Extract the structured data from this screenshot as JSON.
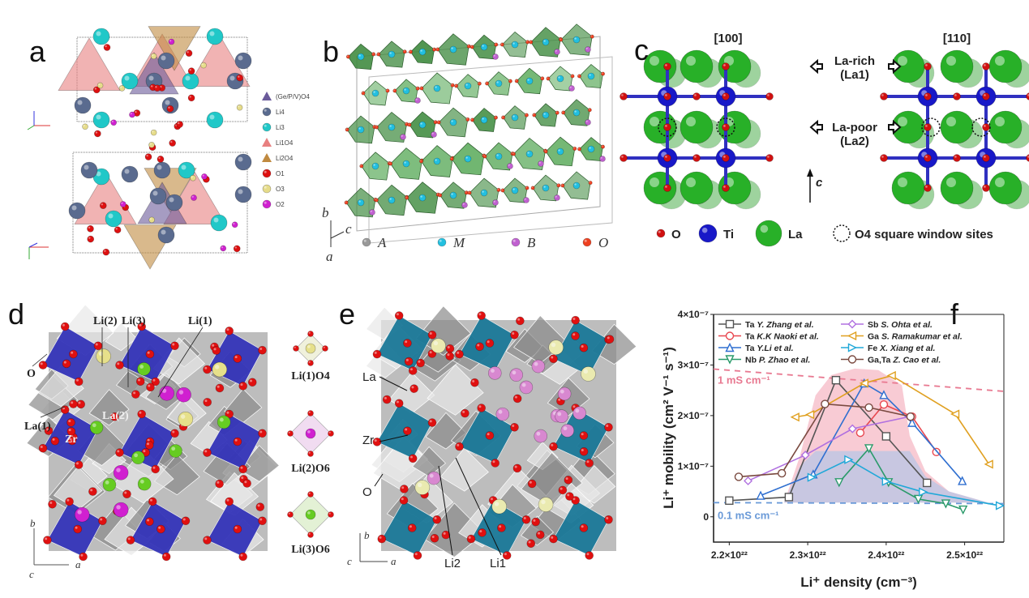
{
  "panels": {
    "a": {
      "label": "a",
      "legend": [
        "(Ge/P/V)O4",
        "Li4",
        "Li3",
        "Li1O4",
        "Li2O4",
        "O1",
        "O3",
        "O2"
      ],
      "legend_colors": [
        "#6a5a9a",
        "#5a6b8f",
        "#20c8c8",
        "#e88080",
        "#c08a40",
        "#dd1010",
        "#e6dc8a",
        "#d020d0"
      ]
    },
    "b": {
      "label": "b",
      "legend": [
        "A",
        "M",
        "B",
        "O"
      ],
      "legend_colors": [
        "#999999",
        "#22c0e0",
        "#c060d0",
        "#ee4020"
      ],
      "axes": {
        "b": "b",
        "c": "c",
        "a": "a"
      }
    },
    "c": {
      "label": "c",
      "view_left": "[100]",
      "view_right": "[110]",
      "la_rich": "La-rich",
      "la_rich_sub": "(La1)",
      "la_poor": "La-poor",
      "la_poor_sub": "(La2)",
      "axis": "c",
      "legend": [
        "O",
        "Ti",
        "La",
        "O4 square window sites"
      ]
    },
    "d": {
      "label": "d",
      "labels": {
        "li2": "Li(2)",
        "li3": "Li(3)",
        "li1": "Li(1)",
        "o": "O",
        "la1": "La(1)",
        "la2": "La(2)",
        "zr": "Zr"
      },
      "sites": [
        "Li(1)O4",
        "Li(2)O6",
        "Li(3)O6"
      ],
      "axes": {
        "b": "b",
        "a": "a",
        "c": "c"
      }
    },
    "e": {
      "label": "e",
      "labels": {
        "la": "La",
        "zr": "Zr",
        "o": "O",
        "li2": "Li2",
        "li1": "Li1"
      },
      "axes": {
        "b": "b",
        "a": "a",
        "c": "c"
      }
    },
    "f": {
      "label": "f"
    }
  },
  "chart_data": {
    "type": "line",
    "xlabel": "Li⁺ density (cm⁻³)",
    "ylabel": "Li⁺ mobility (cm² V⁻¹ s⁻¹)",
    "x_unit": "1e22 cm^-3",
    "y_unit": "1e-7 cm2/V/s",
    "xlim": [
      2.18,
      2.55
    ],
    "ylim": [
      -0.5,
      4.0
    ],
    "xticks": [
      2.2,
      2.3,
      2.4,
      2.5
    ],
    "xtick_labels": [
      "2.2×10²²",
      "2.3×10²²",
      "2.4×10²²",
      "2.5×10²²"
    ],
    "yticks": [
      0,
      1,
      2,
      3,
      4
    ],
    "ytick_labels": [
      "0",
      "1×10⁻⁷",
      "2×10⁻⁷",
      "3×10⁻⁷",
      "4×10⁻⁷"
    ],
    "legend_position": "top",
    "series": [
      {
        "dopant": "Ta",
        "name": "Y. Zhang et al.",
        "color": "#555555",
        "marker": "square",
        "x": [
          2.2,
          2.276,
          2.336,
          2.4,
          2.452
        ],
        "y": [
          0.32,
          0.39,
          2.7,
          1.59,
          0.67
        ]
      },
      {
        "dopant": "Ta",
        "name": "K.K Naoki et al.",
        "color": "#e8474f",
        "marker": "circle",
        "x": [
          2.367,
          2.397,
          2.433,
          2.464
        ],
        "y": [
          1.66,
          2.22,
          1.98,
          1.28
        ]
      },
      {
        "dopant": "Ta",
        "name": "Y.Li et al.",
        "color": "#2f6fd0",
        "marker": "triangle-up",
        "x": [
          2.24,
          2.307,
          2.372,
          2.397,
          2.433,
          2.497
        ],
        "y": [
          0.42,
          0.84,
          2.64,
          2.41,
          1.86,
          0.71
        ]
      },
      {
        "dopant": "Nb",
        "name": "P. Zhao et al.",
        "color": "#2a9a6a",
        "marker": "triangle-down",
        "x": [
          2.34,
          2.378,
          2.403,
          2.441,
          2.476,
          2.498
        ],
        "y": [
          0.68,
          1.35,
          0.68,
          0.35,
          0.26,
          0.14
        ]
      },
      {
        "dopant": "Sb",
        "name": "S. Ohta et al.",
        "color": "#b070e0",
        "marker": "diamond",
        "x": [
          2.224,
          2.297,
          2.357,
          2.43
        ],
        "y": [
          0.71,
          1.22,
          1.74,
          1.98
        ]
      },
      {
        "dopant": "Ga",
        "name": "S. Ramakumar et al.",
        "color": "#e0a020",
        "marker": "triangle-left",
        "x": [
          2.284,
          2.303,
          2.372,
          2.407,
          2.488,
          2.531
        ],
        "y": [
          1.97,
          2.02,
          2.64,
          2.79,
          2.03,
          1.04
        ]
      },
      {
        "dopant": "Fe",
        "name": "X. Xiang et al.",
        "color": "#20a8d8",
        "marker": "triangle-right",
        "x": [
          2.305,
          2.352,
          2.4,
          2.447,
          2.545
        ],
        "y": [
          0.78,
          1.13,
          0.7,
          0.49,
          0.22
        ]
      },
      {
        "dopant": "Ga,Ta",
        "name": "Z. Cao et al.",
        "color": "#7a4a40",
        "marker": "circle-half",
        "x": [
          2.212,
          2.267,
          2.322,
          2.378,
          2.431
        ],
        "y": [
          0.79,
          0.86,
          2.23,
          2.16,
          1.98
        ]
      }
    ],
    "reference_lines": [
      {
        "label": "1 mS cm⁻¹",
        "color": "#e87890",
        "x": [
          2.18,
          2.55
        ],
        "y": [
          2.92,
          2.48
        ]
      },
      {
        "label": "0.1 mS cm⁻¹",
        "color": "#6a9ad8",
        "x": [
          2.18,
          2.55
        ],
        "y": [
          0.28,
          0.26
        ]
      }
    ]
  }
}
